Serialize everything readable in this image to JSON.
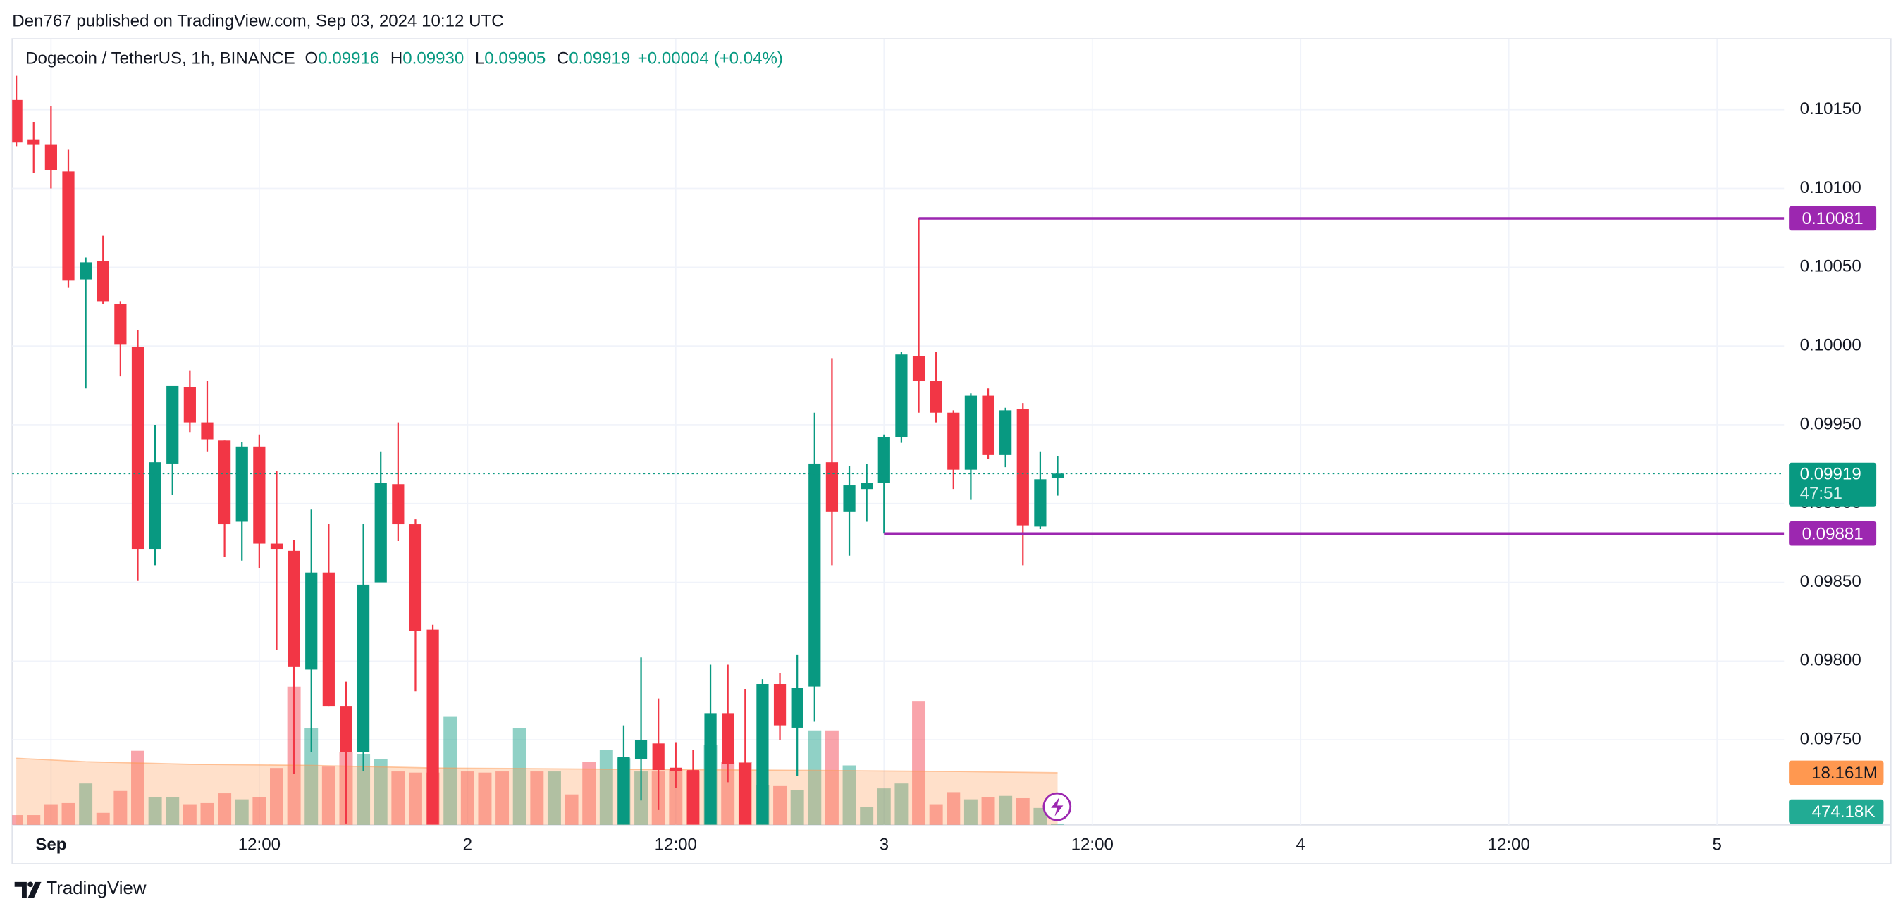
{
  "chart_data": {
    "type": "candlestick",
    "header": "Den767 published on TradingView.com, Sep 03, 2024 10:12 UTC",
    "title": "Dogecoin / TetherUS, 1h, BINANCE",
    "legend": {
      "items": [
        {
          "key": "O",
          "label": "0.09916"
        },
        {
          "key": "H",
          "label": "0.09930"
        },
        {
          "key": "L",
          "label": "0.09905"
        },
        {
          "key": "C",
          "label": "0.09919"
        }
      ],
      "change": "+0.00004 (+0.04%)"
    },
    "brand": "TradingView",
    "countdown": "47:51",
    "up_color": "#089981",
    "down_color": "#f23645",
    "x": [
      -2,
      -1,
      0,
      1,
      2,
      3,
      4,
      5,
      6,
      7,
      8,
      9,
      10,
      11,
      12,
      13,
      14,
      15,
      16,
      17,
      18,
      19,
      20,
      21,
      22,
      23,
      24,
      25,
      26,
      27,
      28,
      29,
      30,
      31,
      32,
      33,
      34,
      35,
      36,
      37,
      38,
      39,
      40,
      41,
      42,
      43,
      44,
      45,
      46,
      47,
      48,
      49,
      50,
      51,
      52,
      53,
      54,
      55,
      56,
      57,
      58
    ],
    "open": [
      0.101562,
      0.101308,
      0.101277,
      0.101108,
      0.100423,
      0.100538,
      0.100269,
      0.099992,
      0.098708,
      0.099254,
      0.099738,
      0.099515,
      0.0994,
      0.098885,
      0.099362,
      0.098746,
      0.0987,
      0.097946,
      0.098562,
      0.097715,
      0.097423,
      0.0985,
      0.099123,
      0.098869,
      0.0982,
      null,
      null,
      null,
      null,
      null,
      null,
      null,
      null,
      null,
      null,
      0.096962,
      0.097377,
      0.097477,
      0.097323,
      0.097308,
      0.096962,
      0.097669,
      0.097354,
      0.096962,
      0.097854,
      0.097577,
      0.097838,
      0.099262,
      0.098946,
      0.099092,
      0.099131,
      0.099423,
      0.099938,
      0.099777,
      0.099577,
      0.099215,
      0.099685,
      0.099308,
      0.0996,
      0.098854,
      0.09916
    ],
    "high": [
      0.101715,
      0.101423,
      0.101523,
      0.101246,
      0.100562,
      0.1007,
      0.100285,
      0.1001,
      0.0995,
      0.099746,
      0.099846,
      0.099777,
      0.0994,
      0.099392,
      0.099438,
      0.099208,
      0.098769,
      0.098962,
      0.098869,
      0.097869,
      0.098869,
      0.099331,
      0.099515,
      0.0989,
      0.098231,
      null,
      null,
      null,
      null,
      null,
      null,
      null,
      null,
      null,
      null,
      0.097592,
      0.098023,
      0.097762,
      0.097485,
      0.097438,
      0.097977,
      0.097977,
      0.097823,
      0.097885,
      0.097923,
      0.098038,
      0.099577,
      0.099923,
      0.099238,
      0.099254,
      0.099438,
      0.099962,
      0.10081,
      0.099962,
      0.099592,
      0.0997,
      0.099731,
      0.099608,
      0.099638,
      0.099331,
      0.0993
    ],
    "low": [
      0.101269,
      0.1011,
      0.101,
      0.100369,
      0.099731,
      0.100269,
      0.099808,
      0.098508,
      0.098608,
      0.099054,
      0.099454,
      0.099331,
      0.098662,
      0.098638,
      0.098592,
      0.098069,
      0.097285,
      0.097423,
      0.097715,
      0.096969,
      0.0973,
      0.0985,
      0.098762,
      0.097808,
      0.096962,
      null,
      null,
      null,
      null,
      null,
      null,
      null,
      null,
      null,
      null,
      0.096962,
      0.097115,
      0.097054,
      0.097192,
      0.096962,
      0.096962,
      0.097231,
      0.096962,
      0.096962,
      0.0975,
      0.097269,
      0.097615,
      0.098608,
      0.098669,
      0.098885,
      0.09881,
      0.099385,
      0.099577,
      0.099515,
      0.099092,
      0.099023,
      0.099285,
      0.099231,
      0.098608,
      0.098838,
      0.09905
    ],
    "close": [
      0.101292,
      0.101277,
      0.101115,
      0.100415,
      0.100531,
      0.100285,
      0.100008,
      0.098708,
      0.099262,
      0.099746,
      0.099515,
      0.099408,
      0.098869,
      0.099362,
      0.098746,
      0.098708,
      0.097962,
      0.098562,
      0.097715,
      0.097423,
      0.098485,
      0.099131,
      0.098869,
      0.098192,
      0.096962,
      null,
      null,
      null,
      null,
      null,
      null,
      null,
      null,
      null,
      null,
      0.097392,
      0.0975,
      0.097308,
      0.0973,
      0.096962,
      0.097669,
      0.097346,
      0.096962,
      0.097854,
      0.097592,
      0.097831,
      0.099254,
      0.098946,
      0.099115,
      0.099131,
      0.099423,
      0.099946,
      0.099777,
      0.099577,
      0.099215,
      0.099685,
      0.099308,
      0.099592,
      0.098862,
      0.099154,
      0.09919
    ],
    "volume": {
      "values": [
        3.4,
        3.4,
        7.2,
        7.6,
        14.4,
        4.2,
        11.8,
        25.8,
        9.7,
        9.7,
        7.2,
        7.6,
        11.0,
        8.9,
        9.7,
        19.8,
        48.1,
        33.8,
        20.3,
        25.3,
        24.5,
        22.8,
        18.6,
        18.2,
        18.2,
        37.6,
        18.6,
        18.2,
        18.6,
        33.8,
        18.6,
        18.6,
        10.6,
        22.0,
        26.2,
        23.2,
        18.6,
        18.6,
        19.4,
        18.6,
        27.9,
        22.0,
        22.0,
        13.9,
        13.5,
        12.2,
        32.9,
        32.9,
        20.7,
        6.3,
        12.7,
        14.4,
        43.1,
        7.2,
        11.4,
        8.9,
        9.7,
        10.1,
        9.3,
        5.9,
        0.47418
      ],
      "colors": [
        "#f23645",
        "#f23645",
        "#f23645",
        "#f23645",
        "#089981",
        "#f23645",
        "#f23645",
        "#f23645",
        "#089981",
        "#089981",
        "#f23645",
        "#f23645",
        "#f23645",
        "#089981",
        "#f23645",
        "#f23645",
        "#f23645",
        "#089981",
        "#f23645",
        "#f23645",
        "#089981",
        "#089981",
        "#f23645",
        "#f23645",
        "#f23645",
        "#089981",
        "#f23645",
        "#f23645",
        "#f23645",
        "#089981",
        "#f23645",
        "#089981",
        "#f23645",
        "#f23645",
        "#089981",
        "#089981",
        "#089981",
        "#f23645",
        "#f23645",
        "#f23645",
        "#089981",
        "#f23645",
        "#f23645",
        "#089981",
        "#f23645",
        "#089981",
        "#089981",
        "#f23645",
        "#089981",
        "#089981",
        "#089981",
        "#089981",
        "#f23645",
        "#f23645",
        "#f23645",
        "#089981",
        "#f23645",
        "#089981",
        "#f23645",
        "#089981",
        "#089981"
      ],
      "value_labels": [
        null,
        null,
        null,
        null,
        null,
        null,
        null,
        null,
        null,
        null,
        null,
        null,
        null,
        null,
        null,
        null,
        null,
        null,
        null,
        null,
        null,
        null,
        null,
        null,
        null,
        null,
        null,
        null,
        null,
        null,
        null,
        null,
        null,
        null,
        null,
        null,
        null,
        null,
        null,
        null,
        null,
        null,
        null,
        null,
        null,
        null,
        null,
        null,
        null,
        null,
        null,
        null,
        null,
        null,
        null,
        null,
        null,
        null,
        null,
        null,
        "474.18K"
      ],
      "ylim": [
        0,
        273.6
      ]
    },
    "volume_ma": {
      "x": [
        -2,
        2,
        8,
        15,
        22,
        32,
        43,
        52,
        58
      ],
      "values": [
        23.2,
        22.0,
        21.1,
        20.7,
        19.8,
        19.4,
        19.0,
        18.6,
        18.161
      ],
      "value_labels": [
        null,
        null,
        null,
        null,
        null,
        null,
        null,
        null,
        "18.161M"
      ],
      "color": "#ff9850"
    },
    "levels": [
      {
        "value": 0.10081,
        "from": 50,
        "color": "#9c27b0"
      },
      {
        "value": 0.09881,
        "from": 48,
        "color": "#9c27b0"
      }
    ],
    "xlim": [
      -2.24,
      99.86
    ],
    "xticks": [
      {
        "value": 0,
        "label": "Sep"
      },
      {
        "value": 12,
        "label": "12:00"
      },
      {
        "value": 24,
        "label": "2"
      },
      {
        "value": 36,
        "label": "12:00"
      },
      {
        "value": 48,
        "label": "3"
      },
      {
        "value": 60,
        "label": "12:00"
      },
      {
        "value": 72,
        "label": "4"
      },
      {
        "value": 84,
        "label": "12:00"
      },
      {
        "value": 96,
        "label": "5"
      }
    ],
    "ylim": [
      0.09696,
      0.10195
    ],
    "yticks": [
      {
        "value": 0.0975,
        "label": "0.09750"
      },
      {
        "value": 0.098,
        "label": "0.09800"
      },
      {
        "value": 0.0985,
        "label": "0.09850"
      },
      {
        "value": 0.099,
        "label": "0.09900"
      },
      {
        "value": 0.0995,
        "label": "0.09950"
      },
      {
        "value": 0.1,
        "label": "0.10000"
      },
      {
        "value": 0.1005,
        "label": "0.10050"
      },
      {
        "value": 0.101,
        "label": "0.10100"
      },
      {
        "value": 0.1015,
        "label": "0.10150"
      }
    ],
    "grid": true
  }
}
